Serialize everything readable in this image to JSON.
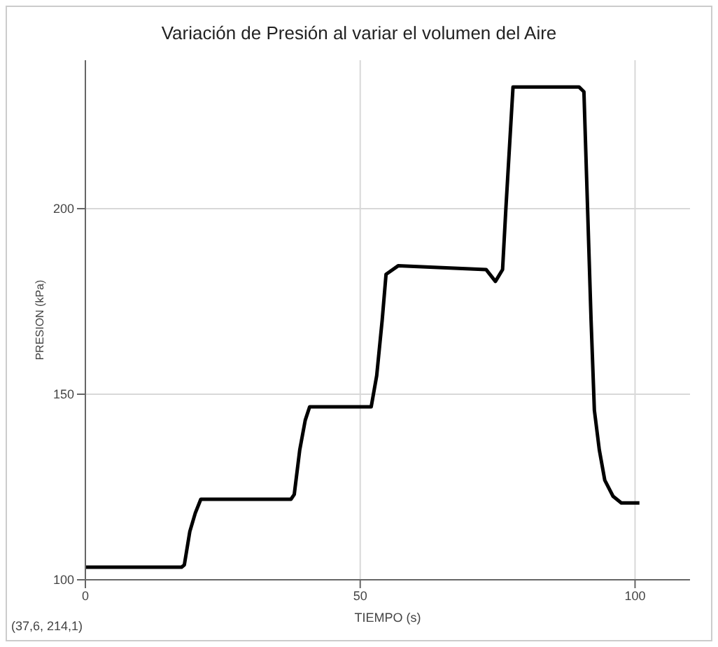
{
  "chart_data": {
    "type": "line",
    "title": "Variación de Presión al variar el volumen del Aire",
    "xlabel": "TIEMPO (s)",
    "ylabel": "PRESION (kPa)",
    "annotations": [
      "(37,6, 214,1)"
    ],
    "x": [
      0,
      17.5,
      18,
      19,
      20,
      21,
      37.4,
      38,
      39,
      40,
      40.8,
      52,
      53,
      54,
      54.7,
      56.9,
      72.9,
      74.6,
      75.9,
      76.5,
      77.8,
      89.8,
      90.7,
      92,
      92.6,
      93.5,
      94.5,
      96,
      97.5,
      100.8
    ],
    "series": [
      {
        "color": "#000000",
        "values": [
          103.4,
          103.4,
          104,
          113,
          118,
          121.7,
          121.7,
          123,
          135,
          143,
          146.6,
          146.6,
          155,
          170,
          182.3,
          184.6,
          183.6,
          180.4,
          183.6,
          200,
          232.8,
          232.8,
          231.5,
          170,
          145.7,
          135,
          126.8,
          122.5,
          120.7,
          120.7
        ]
      }
    ],
    "xlim": [
      0,
      110
    ],
    "ylim": [
      100,
      240
    ],
    "xticks": [
      0,
      50,
      100
    ],
    "yticks": [
      100,
      150,
      200
    ],
    "grid": true,
    "marker": "none",
    "line_style": "solid"
  }
}
